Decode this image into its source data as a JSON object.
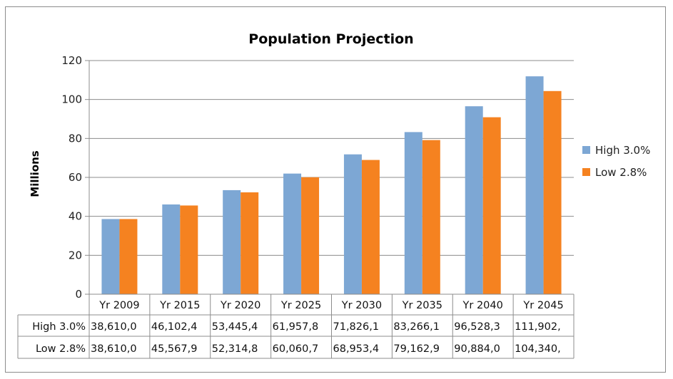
{
  "chart_data": {
    "type": "bar",
    "title": "Population Projection",
    "ylabel": "Millions",
    "xlabel": "",
    "ylim": [
      0,
      120
    ],
    "yticks": [
      0,
      20,
      40,
      60,
      80,
      100,
      120
    ],
    "grid": true,
    "legend_position": "right",
    "categories": [
      "Yr 2009",
      "Yr 2015",
      "Yr 2020",
      "Yr 2025",
      "Yr 2030",
      "Yr 2035",
      "Yr 2040",
      "Yr 2045"
    ],
    "series": [
      {
        "name": "High 3.0%",
        "color": "#7da7d4",
        "values": [
          38.61,
          46.1024,
          53.4454,
          61.9578,
          71.8261,
          83.2661,
          96.5283,
          111.902
        ],
        "table_labels": [
          "38,610,0",
          "46,102,4",
          "53,445,4",
          "61,957,8",
          "71,826,1",
          "83,266,1",
          "96,528,3",
          "111,902,"
        ]
      },
      {
        "name": "Low 2.8%",
        "color": "#f58220",
        "values": [
          38.61,
          45.5679,
          52.3148,
          60.0607,
          68.9534,
          79.1629,
          90.884,
          104.34
        ],
        "table_labels": [
          "38,610,0",
          "45,567,9",
          "52,314,8",
          "60,060,7",
          "68,953,4",
          "79,162,9",
          "90,884,0",
          "104,340,"
        ]
      }
    ]
  }
}
